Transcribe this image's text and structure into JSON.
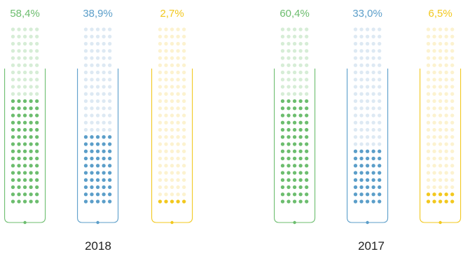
{
  "chart_data": {
    "type": "dot-column",
    "groups": [
      {
        "label": "2018",
        "series": [
          {
            "value": 58.4,
            "display": "58,4%",
            "color": "#6cbd6e",
            "light": "#d6edd6"
          },
          {
            "value": 38.9,
            "display": "38,9%",
            "color": "#5b9ec9",
            "light": "#dde9f3"
          },
          {
            "value": 2.7,
            "display": "2,7%",
            "color": "#f2c81e",
            "light": "#fcf2cf"
          }
        ]
      },
      {
        "label": "2017",
        "series": [
          {
            "value": 60.4,
            "display": "60,4%",
            "color": "#6cbd6e",
            "light": "#d6edd6"
          },
          {
            "value": 33.0,
            "display": "33,0%",
            "color": "#5b9ec9",
            "light": "#dde9f3"
          },
          {
            "value": 6.5,
            "display": "6,5%",
            "color": "#f2c81e",
            "light": "#fcf2cf"
          }
        ]
      }
    ],
    "dot_grid": {
      "rows": 25,
      "cols": 5
    },
    "ylim": [
      0,
      100
    ]
  }
}
